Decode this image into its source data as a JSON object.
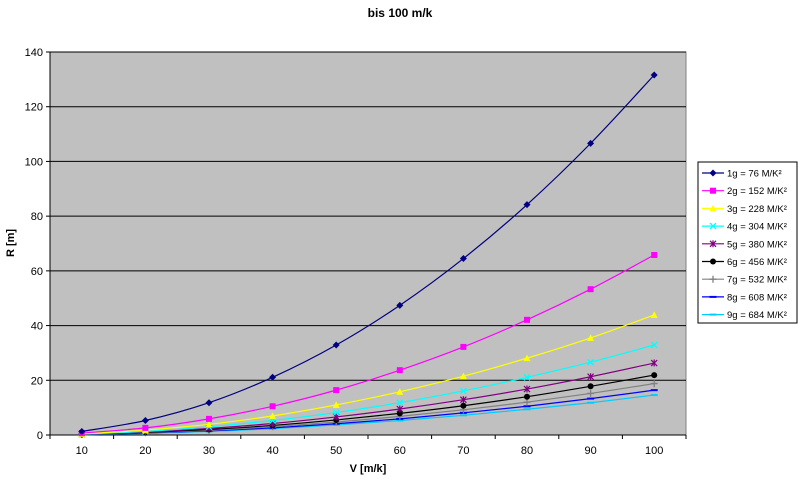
{
  "chart_data": {
    "type": "line",
    "title": "bis 100 m/k",
    "xlabel": "V [m/k]",
    "ylabel": "R [m]",
    "x": [
      10,
      20,
      30,
      40,
      50,
      60,
      70,
      80,
      90,
      100
    ],
    "xlim": [
      10,
      100
    ],
    "ylim": [
      0,
      140
    ],
    "yticks": [
      0,
      20,
      40,
      60,
      80,
      100,
      120,
      140
    ],
    "grid": "horizontal",
    "plot_background": "#c0c0c0",
    "legend_position": "right",
    "series": [
      {
        "name": "1g = 76 M/K²",
        "color": "#000080",
        "marker": "diamond",
        "values": [
          1.3,
          5.3,
          11.8,
          21.1,
          32.9,
          47.4,
          64.5,
          84.2,
          106.6,
          131.6
        ]
      },
      {
        "name": "2g = 152 M/K²",
        "color": "#ff00ff",
        "marker": "square",
        "values": [
          0.7,
          2.6,
          5.9,
          10.5,
          16.4,
          23.7,
          32.2,
          42.1,
          53.3,
          65.8
        ]
      },
      {
        "name": "3g = 228 M/K²",
        "color": "#ffff00",
        "marker": "triangle",
        "values": [
          0.4,
          1.8,
          3.9,
          7.0,
          11.0,
          15.8,
          21.5,
          28.1,
          35.5,
          43.9
        ]
      },
      {
        "name": "4g = 304 M/K²",
        "color": "#00ffff",
        "marker": "x",
        "values": [
          0.3,
          1.3,
          3.0,
          5.3,
          8.2,
          11.8,
          16.1,
          21.1,
          26.6,
          32.9
        ]
      },
      {
        "name": "5g = 380 M/K²",
        "color": "#800080",
        "marker": "star",
        "values": [
          0.3,
          1.1,
          2.4,
          4.2,
          6.6,
          9.5,
          12.9,
          16.8,
          21.3,
          26.3
        ]
      },
      {
        "name": "6g = 456 M/K²",
        "color": "#000000",
        "marker": "circle",
        "values": [
          0.2,
          0.9,
          2.0,
          3.5,
          5.5,
          7.9,
          10.7,
          14.0,
          17.8,
          21.9
        ]
      },
      {
        "name": "7g = 532 M/K²",
        "color": "#808080",
        "marker": "plus",
        "values": [
          0.2,
          0.8,
          1.7,
          3.0,
          4.7,
          6.8,
          9.2,
          12.0,
          15.2,
          18.8
        ]
      },
      {
        "name": "8g = 608 M/K²",
        "color": "#0000ff",
        "marker": "dash",
        "values": [
          0.2,
          0.7,
          1.5,
          2.6,
          4.1,
          5.9,
          8.1,
          10.5,
          13.3,
          16.4
        ]
      },
      {
        "name": "9g = 684 M/K²",
        "color": "#00ccff",
        "marker": "dash",
        "values": [
          0.1,
          0.6,
          1.3,
          2.3,
          3.7,
          5.3,
          7.2,
          9.4,
          11.8,
          14.6
        ]
      }
    ]
  }
}
